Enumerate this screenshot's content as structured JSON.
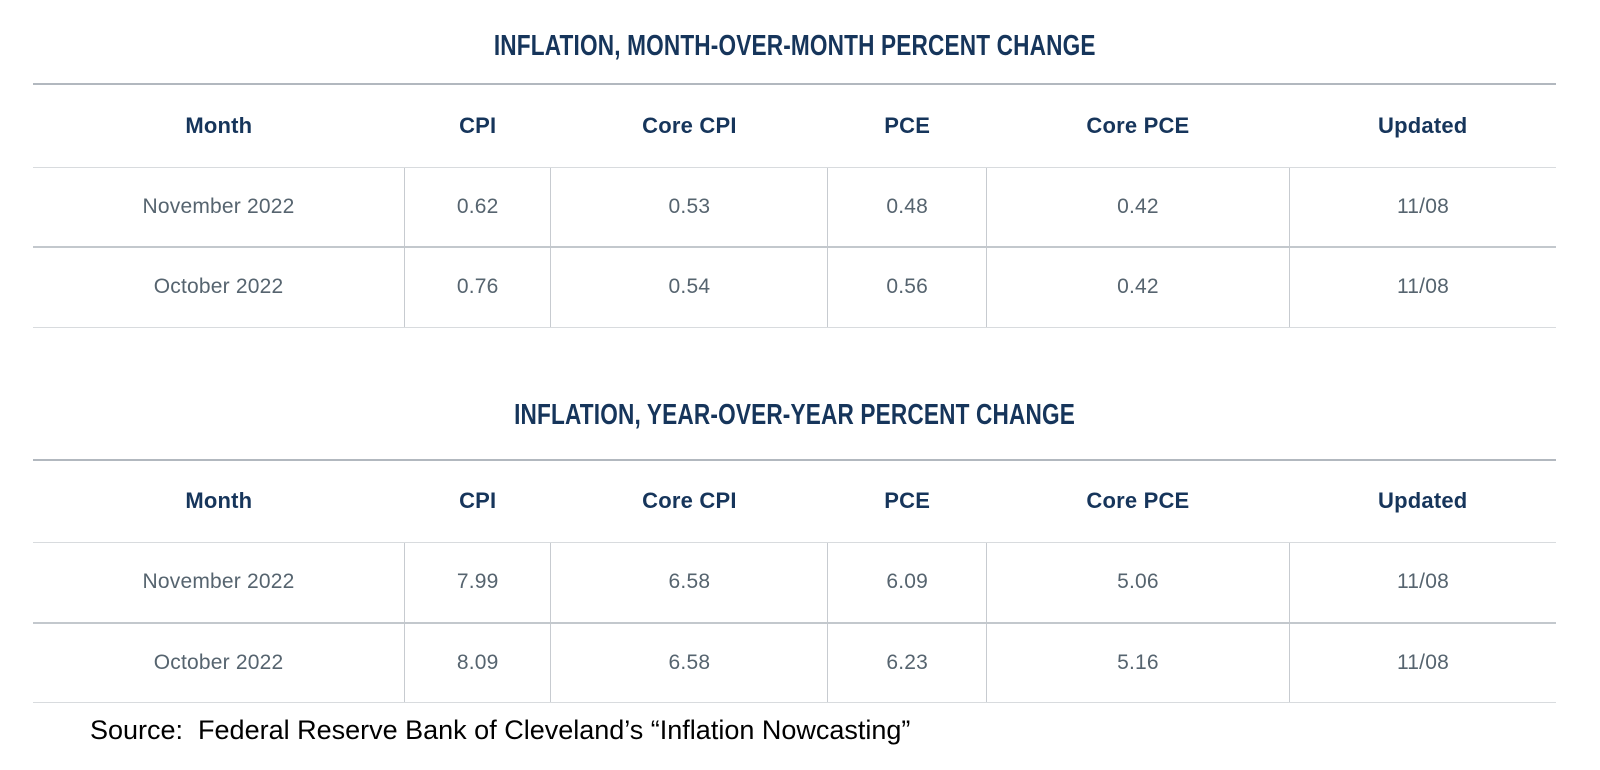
{
  "colors": {
    "heading_navy": "#16355b",
    "cell_slate": "#56646f",
    "rule_light": "#d8dbde",
    "rule_medium": "#c7cbd0",
    "rule_top": "#b2b8bf",
    "source_text": "#000000",
    "background": "#ffffff"
  },
  "tables": [
    {
      "title": "INFLATION, MONTH-OVER-MONTH PERCENT CHANGE",
      "columns": [
        "Month",
        "CPI",
        "Core CPI",
        "PCE",
        "Core PCE",
        "Updated"
      ],
      "rows": [
        [
          "November 2022",
          "0.62",
          "0.53",
          "0.48",
          "0.42",
          "11/08"
        ],
        [
          "October 2022",
          "0.76",
          "0.54",
          "0.56",
          "0.42",
          "11/08"
        ]
      ]
    },
    {
      "title": "INFLATION, YEAR-OVER-YEAR PERCENT CHANGE",
      "columns": [
        "Month",
        "CPI",
        "Core CPI",
        "PCE",
        "Core PCE",
        "Updated"
      ],
      "rows": [
        [
          "November 2022",
          "7.99",
          "6.58",
          "6.09",
          "5.06",
          "11/08"
        ],
        [
          "October 2022",
          "8.09",
          "6.58",
          "6.23",
          "5.16",
          "11/08"
        ]
      ]
    }
  ],
  "source_note": "Source:  Federal Reserve Bank of Cleveland’s “Inflation Nowcasting”"
}
